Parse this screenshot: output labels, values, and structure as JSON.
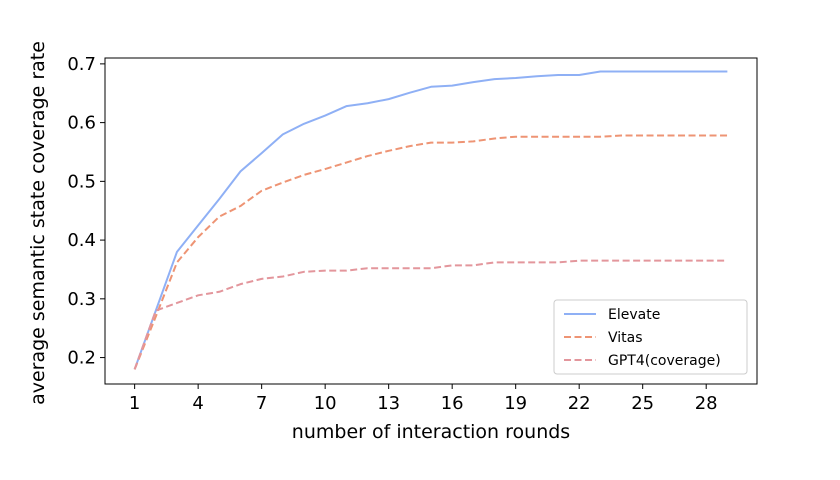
{
  "chart_data": {
    "type": "line",
    "xlabel": "number of interaction rounds",
    "ylabel": "average semantic state coverage rate",
    "xlim": [
      -0.4,
      30.4
    ],
    "ylim": [
      0.155,
      0.71
    ],
    "xticks": [
      1,
      4,
      7,
      10,
      13,
      16,
      19,
      22,
      25,
      28
    ],
    "yticks": [
      0.2,
      0.3,
      0.4,
      0.5,
      0.6,
      0.7
    ],
    "ytick_labels": [
      "0.2",
      "0.3",
      "0.4",
      "0.5",
      "0.6",
      "0.7"
    ],
    "grid": false,
    "legend_position": "lower-right",
    "x": [
      1,
      2,
      3,
      4,
      5,
      6,
      7,
      8,
      9,
      10,
      11,
      12,
      13,
      14,
      15,
      16,
      17,
      18,
      19,
      20,
      21,
      22,
      23,
      24,
      25,
      26,
      27,
      28,
      29
    ],
    "series": [
      {
        "name": "Elevate",
        "color": "#8fb0f5",
        "style": "solid",
        "values": [
          0.18,
          0.28,
          0.38,
          0.425,
          0.47,
          0.517,
          0.548,
          0.58,
          0.598,
          0.612,
          0.628,
          0.633,
          0.64,
          0.651,
          0.661,
          0.663,
          0.669,
          0.674,
          0.676,
          0.679,
          0.681,
          0.681,
          0.687,
          0.687,
          0.687,
          0.687,
          0.687,
          0.687,
          0.687
        ]
      },
      {
        "name": "Vitas",
        "color": "#ee9474",
        "style": "dashed",
        "values": [
          0.18,
          0.27,
          0.362,
          0.405,
          0.44,
          0.458,
          0.484,
          0.498,
          0.511,
          0.521,
          0.532,
          0.543,
          0.552,
          0.56,
          0.566,
          0.566,
          0.568,
          0.573,
          0.576,
          0.576,
          0.576,
          0.576,
          0.576,
          0.578,
          0.578,
          0.578,
          0.578,
          0.578,
          0.578
        ]
      },
      {
        "name": "GPT4(coverage)",
        "color": "#e3969c",
        "style": "dashed",
        "values": [
          0.18,
          0.28,
          0.293,
          0.306,
          0.312,
          0.325,
          0.334,
          0.338,
          0.346,
          0.348,
          0.348,
          0.352,
          0.352,
          0.352,
          0.352,
          0.357,
          0.357,
          0.362,
          0.362,
          0.362,
          0.362,
          0.365,
          0.365,
          0.365,
          0.365,
          0.365,
          0.365,
          0.365,
          0.365
        ]
      }
    ]
  }
}
